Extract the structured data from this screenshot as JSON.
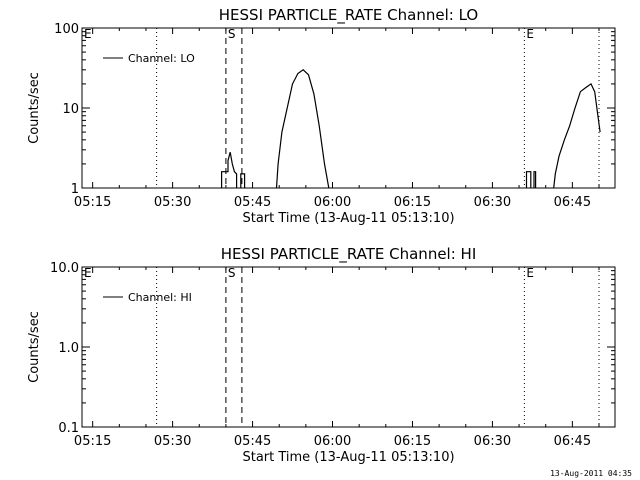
{
  "footer_timestamp": "13-Aug-2011 04:35",
  "chart_data": [
    {
      "type": "line",
      "title": "HESSI PARTICLE_RATE Channel: LO",
      "xlabel": "Start Time (13-Aug-11 05:13:10)",
      "ylabel": "Counts/sec",
      "yscale": "log",
      "ylim": [
        1,
        100
      ],
      "xlim": [
        "05:13",
        "06:53"
      ],
      "xticks": [
        "05:15",
        "05:30",
        "05:45",
        "06:00",
        "06:15",
        "06:30",
        "06:45"
      ],
      "yticks": [
        "1",
        "10",
        "100"
      ],
      "legend": {
        "position": "top-left",
        "entries": [
          "Channel: LO"
        ]
      },
      "markers": [
        {
          "label": "E",
          "time": "05:13",
          "style": "none"
        },
        {
          "label": "",
          "time": "05:27",
          "style": "dotted"
        },
        {
          "label": "S",
          "time": "05:40",
          "style": "dashed"
        },
        {
          "label": "",
          "time": "05:43",
          "style": "dashed"
        },
        {
          "label": "E",
          "time": "06:36",
          "style": "dotted"
        },
        {
          "label": "",
          "time": "06:50",
          "style": "dotted"
        }
      ],
      "series": [
        {
          "name": "Channel: LO",
          "segments": [
            [
              [
                "05:39.2",
                1
              ],
              [
                "05:39.2",
                1.6
              ],
              [
                "05:40.4",
                1.6
              ],
              [
                "05:40.4",
                2.2
              ],
              [
                "05:40.8",
                2.8
              ],
              [
                "05:41.2",
                2.0
              ],
              [
                "05:41.6",
                1.6
              ],
              [
                "05:42.0",
                1.5
              ],
              [
                "05:42.0",
                1
              ]
            ],
            [
              [
                "05:42.8",
                1
              ],
              [
                "05:42.8",
                1.5
              ],
              [
                "05:43.5",
                1.5
              ],
              [
                "05:43.5",
                1
              ]
            ],
            [
              [
                "05:49.5",
                1
              ],
              [
                "05:49.8",
                2
              ],
              [
                "05:50.5",
                5
              ],
              [
                "05:51.5",
                10
              ],
              [
                "05:52.5",
                20
              ],
              [
                "05:53.5",
                27
              ],
              [
                "05:54.5",
                30
              ],
              [
                "05:55.5",
                26
              ],
              [
                "05:56.5",
                15
              ],
              [
                "05:57.5",
                6
              ],
              [
                "05:58.5",
                2
              ],
              [
                "05:59.3",
                1
              ]
            ],
            [
              [
                "06:36.4",
                1
              ],
              [
                "06:36.4",
                1.6
              ],
              [
                "06:37.2",
                1.6
              ],
              [
                "06:37.2",
                1
              ]
            ],
            [
              [
                "06:37.8",
                1
              ],
              [
                "06:37.8",
                1.6
              ],
              [
                "06:38.1",
                1.6
              ],
              [
                "06:38.1",
                1
              ]
            ],
            [
              [
                "06:41.5",
                1
              ],
              [
                "06:41.8",
                1.5
              ],
              [
                "06:42.5",
                2.5
              ],
              [
                "06:43.5",
                4
              ],
              [
                "06:44.5",
                6
              ],
              [
                "06:45.5",
                10
              ],
              [
                "06:46.5",
                16
              ],
              [
                "06:47.5",
                18
              ],
              [
                "06:48.5",
                20
              ],
              [
                "06:49.2",
                16
              ],
              [
                "06:49.8",
                8
              ],
              [
                "06:50.2",
                5
              ]
            ]
          ]
        }
      ]
    },
    {
      "type": "line",
      "title": "HESSI PARTICLE_RATE Channel: HI",
      "xlabel": "Start Time (13-Aug-11 05:13:10)",
      "ylabel": "Counts/sec",
      "yscale": "log",
      "ylim": [
        0.1,
        10
      ],
      "xlim": [
        "05:13",
        "06:53"
      ],
      "xticks": [
        "05:15",
        "05:30",
        "05:45",
        "06:00",
        "06:15",
        "06:30",
        "06:45"
      ],
      "yticks": [
        "0.1",
        "1.0",
        "10.0"
      ],
      "legend": {
        "position": "top-left",
        "entries": [
          "Channel: HI"
        ]
      },
      "markers": [
        {
          "label": "E",
          "time": "05:13",
          "style": "none"
        },
        {
          "label": "",
          "time": "05:27",
          "style": "dotted"
        },
        {
          "label": "S",
          "time": "05:40",
          "style": "dashed"
        },
        {
          "label": "",
          "time": "05:43",
          "style": "dashed"
        },
        {
          "label": "E",
          "time": "06:36",
          "style": "dotted"
        },
        {
          "label": "",
          "time": "06:50",
          "style": "dotted"
        }
      ],
      "series": [
        {
          "name": "Channel: HI",
          "segments": []
        }
      ]
    }
  ]
}
